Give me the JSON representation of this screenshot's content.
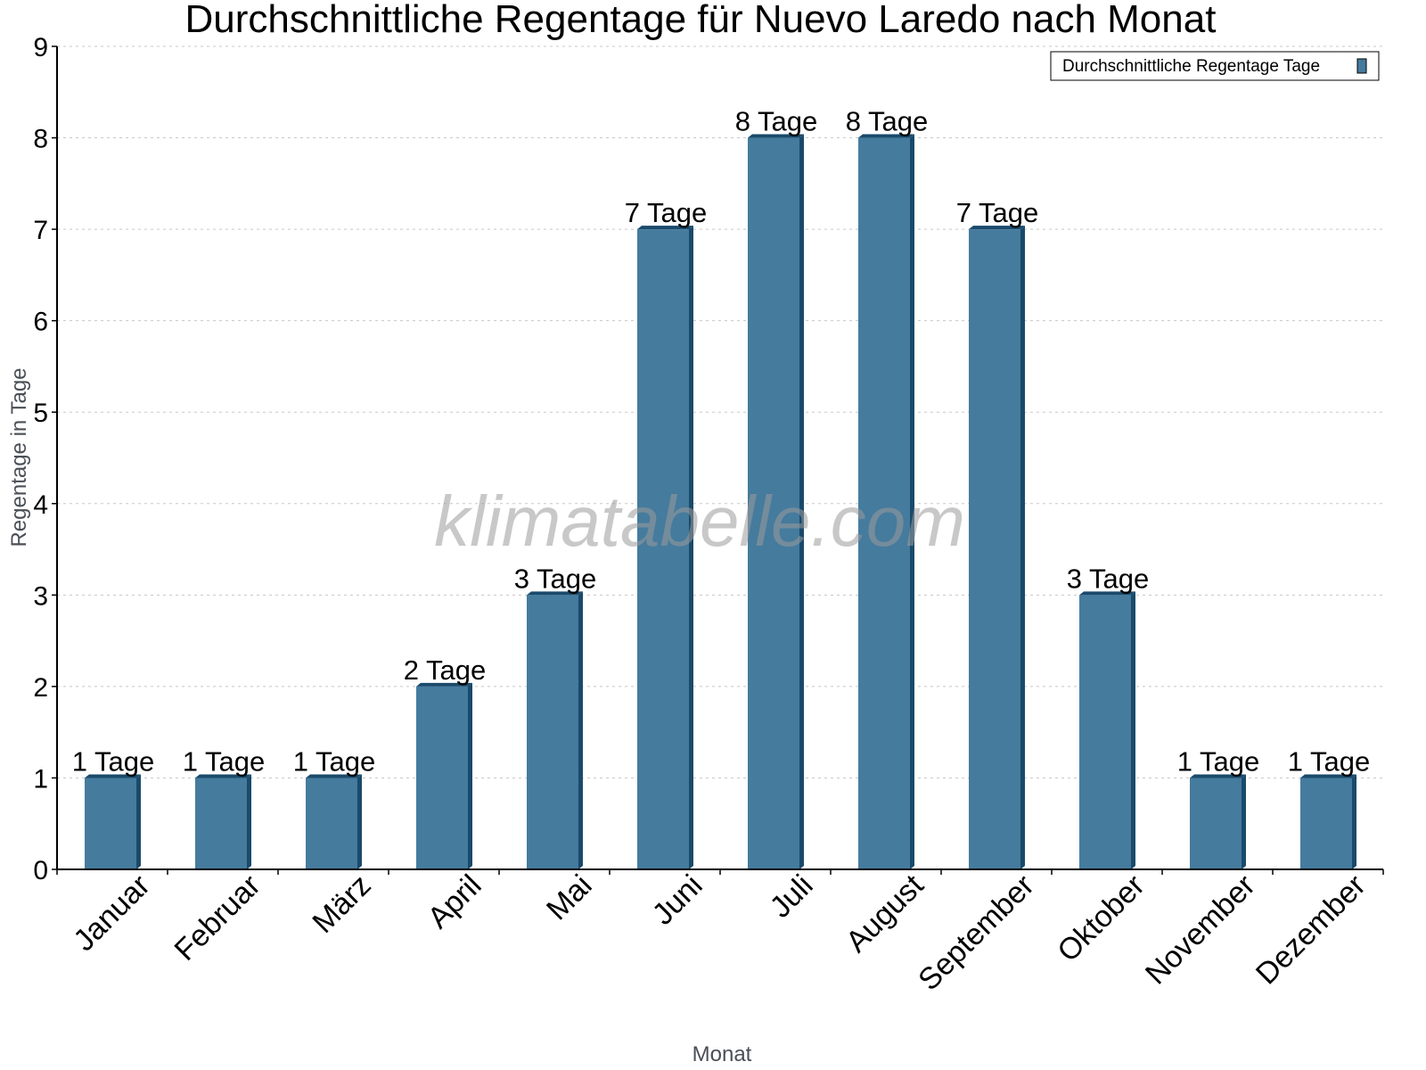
{
  "title": "Durchschnittliche Regentage für Nuevo Laredo nach Monat",
  "watermark": "klimatabelle.com",
  "legend": {
    "label": "Durchschnittliche Regentage Tage",
    "color": "#457b9d"
  },
  "colors": {
    "bar_front": "#457b9d",
    "bar_side": "#1a4a6b",
    "bar_top": "#1a4a6b",
    "grid": "#c8c8c8",
    "axis": "#000000"
  },
  "chart_data": {
    "type": "bar",
    "title": "Durchschnittliche Regentage für Nuevo Laredo nach Monat",
    "xlabel": "Monat",
    "ylabel": "Regentage in Tage",
    "categories": [
      "Januar",
      "Februar",
      "März",
      "April",
      "Mai",
      "Juni",
      "Juli",
      "August",
      "September",
      "Oktober",
      "November",
      "Dezember"
    ],
    "series": [
      {
        "name": "Durchschnittliche Regentage Tage",
        "values": [
          1,
          1,
          1,
          2,
          3,
          7,
          8,
          8,
          7,
          3,
          1,
          1
        ]
      }
    ],
    "data_labels": [
      "1 Tage",
      "1 Tage",
      "1 Tage",
      "2 Tage",
      "3 Tage",
      "7 Tage",
      "8 Tage",
      "8 Tage",
      "7 Tage",
      "3 Tage",
      "1 Tage",
      "1 Tage"
    ],
    "ylim": [
      0,
      9
    ],
    "yticks": [
      0,
      1,
      2,
      3,
      4,
      5,
      6,
      7,
      8,
      9
    ],
    "grid": true,
    "legend_position": "top-right"
  }
}
